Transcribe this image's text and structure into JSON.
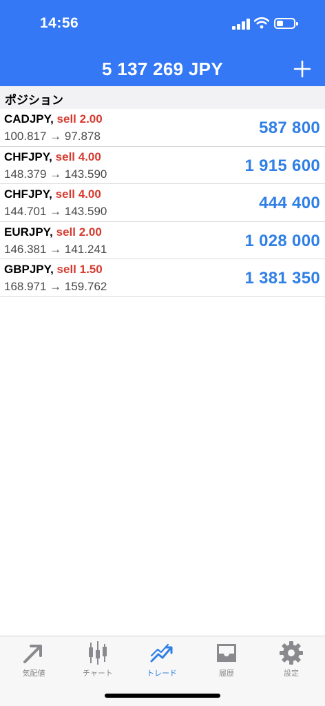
{
  "status_bar": {
    "time": "14:56"
  },
  "header": {
    "balance": "5 137 269 JPY"
  },
  "section": {
    "title": "ポジション"
  },
  "positions": [
    {
      "symbol": "CADJPY,",
      "side": "sell 2.00",
      "prices": "100.817 → 97.878",
      "profit": "587 800"
    },
    {
      "symbol": "CHFJPY,",
      "side": "sell 4.00",
      "prices": "148.379 → 143.590",
      "profit": "1 915 600"
    },
    {
      "symbol": "CHFJPY,",
      "side": "sell 4.00",
      "prices": "144.701 → 143.590",
      "profit": "444 400"
    },
    {
      "symbol": "EURJPY,",
      "side": "sell 2.00",
      "prices": "146.381 → 141.241",
      "profit": "1 028 000"
    },
    {
      "symbol": "GBPJPY,",
      "side": "sell 1.50",
      "prices": "168.971 → 159.762",
      "profit": "1 381 350"
    }
  ],
  "tabs": [
    {
      "label": "気配値",
      "icon": "quotes-icon"
    },
    {
      "label": "チャート",
      "icon": "chart-icon"
    },
    {
      "label": "トレード",
      "icon": "trade-icon",
      "active": true
    },
    {
      "label": "履歴",
      "icon": "history-icon"
    },
    {
      "label": "設定",
      "icon": "settings-icon"
    }
  ],
  "colors": {
    "accent": "#3478f5",
    "sell": "#d63a2f",
    "profit": "#2f7fe6",
    "inactive": "#8a8a8e"
  }
}
